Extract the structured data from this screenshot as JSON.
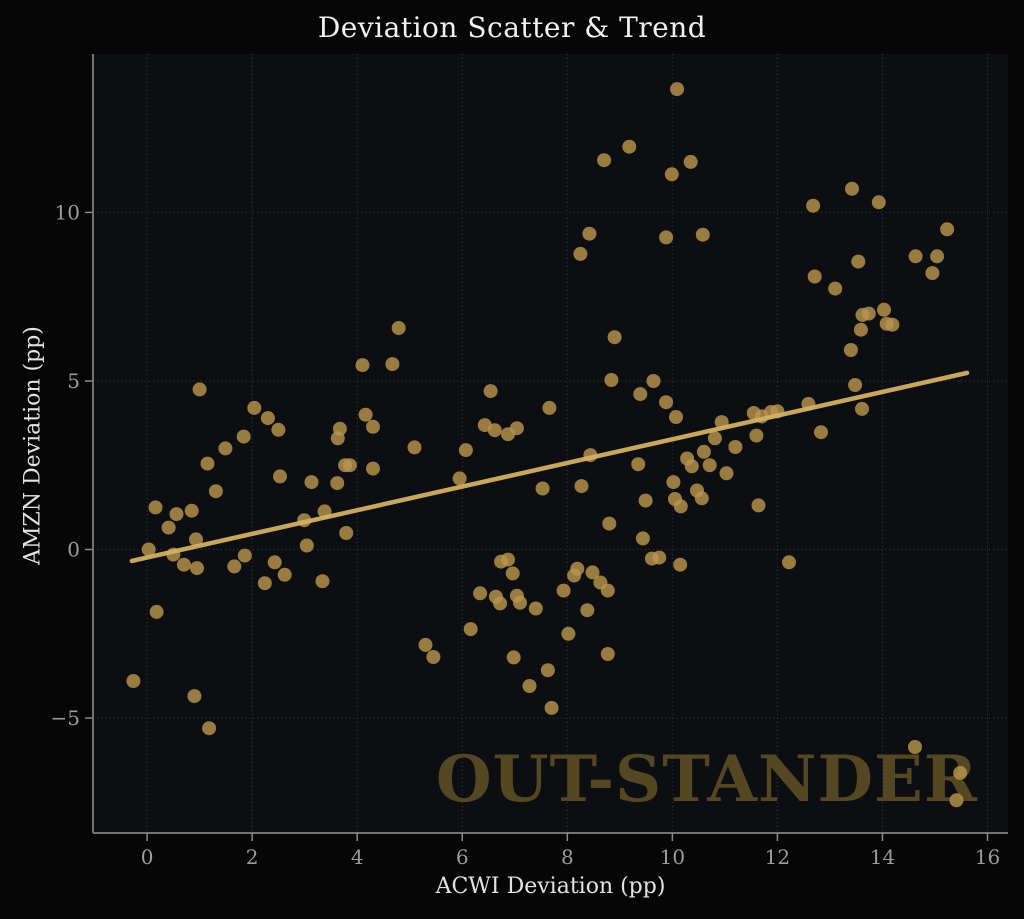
{
  "chart_data": {
    "type": "scatter",
    "title": "Deviation Scatter & Trend",
    "xlabel": "ACWI Deviation (pp)",
    "ylabel": "AMZN Deviation (pp)",
    "watermark": "OUT-STANDER",
    "xlim": [
      -1.03,
      16.39
    ],
    "ylim": [
      -8.41,
      14.7
    ],
    "grid": true,
    "legend": false,
    "xticks": {
      "values": [
        0,
        2,
        4,
        6,
        8,
        10,
        12,
        14,
        16
      ],
      "labels": [
        "0",
        "2",
        "4",
        "6",
        "8",
        "10",
        "12",
        "14",
        "16"
      ]
    },
    "yticks": {
      "values": [
        -5,
        0,
        5,
        10
      ],
      "labels": [
        "−5",
        "0",
        "5",
        "10"
      ]
    },
    "trend_line": {
      "x": [
        -0.29,
        15.61
      ],
      "y": [
        -0.34,
        5.24
      ]
    },
    "points": [
      [
        -0.26,
        -3.9
      ],
      [
        0.03,
        0.0
      ],
      [
        0.16,
        1.25
      ],
      [
        0.18,
        -1.85
      ],
      [
        0.41,
        0.65
      ],
      [
        0.5,
        -0.15
      ],
      [
        0.56,
        1.05
      ],
      [
        0.7,
        -0.45
      ],
      [
        0.85,
        1.15
      ],
      [
        0.9,
        -4.35
      ],
      [
        0.93,
        0.3
      ],
      [
        0.95,
        -0.55
      ],
      [
        1.0,
        4.75
      ],
      [
        1.15,
        2.55
      ],
      [
        1.18,
        -5.3
      ],
      [
        1.31,
        1.73
      ],
      [
        1.49,
        3.0
      ],
      [
        1.66,
        -0.5
      ],
      [
        1.84,
        3.35
      ],
      [
        1.86,
        -0.18
      ],
      [
        2.04,
        4.2
      ],
      [
        2.24,
        -1.0
      ],
      [
        2.3,
        3.9
      ],
      [
        2.43,
        -0.38
      ],
      [
        2.5,
        3.55
      ],
      [
        2.53,
        2.17
      ],
      [
        2.62,
        -0.75
      ],
      [
        2.99,
        0.87
      ],
      [
        3.04,
        0.12
      ],
      [
        3.13,
        2.0
      ],
      [
        3.34,
        -0.94
      ],
      [
        3.38,
        1.13
      ],
      [
        3.62,
        1.97
      ],
      [
        3.63,
        3.3
      ],
      [
        3.67,
        3.58
      ],
      [
        3.77,
        2.5
      ],
      [
        3.79,
        0.49
      ],
      [
        3.86,
        2.5
      ],
      [
        4.1,
        5.47
      ],
      [
        4.16,
        4.0
      ],
      [
        4.3,
        3.64
      ],
      [
        4.3,
        2.4
      ],
      [
        4.67,
        5.5
      ],
      [
        4.79,
        6.57
      ],
      [
        5.09,
        3.03
      ],
      [
        5.3,
        -2.83
      ],
      [
        5.45,
        -3.19
      ],
      [
        5.95,
        2.11
      ],
      [
        6.07,
        2.95
      ],
      [
        6.16,
        -2.36
      ],
      [
        6.34,
        -1.3
      ],
      [
        6.43,
        3.69
      ],
      [
        6.54,
        4.7
      ],
      [
        6.62,
        3.54
      ],
      [
        6.64,
        -1.4
      ],
      [
        6.72,
        -1.6
      ],
      [
        6.74,
        -0.36
      ],
      [
        6.87,
        3.42
      ],
      [
        6.87,
        -0.3
      ],
      [
        6.96,
        -0.71
      ],
      [
        6.98,
        -3.2
      ],
      [
        7.04,
        3.6
      ],
      [
        7.04,
        -1.37
      ],
      [
        7.1,
        -1.58
      ],
      [
        7.28,
        -4.05
      ],
      [
        7.4,
        -1.75
      ],
      [
        7.53,
        1.81
      ],
      [
        7.63,
        -3.58
      ],
      [
        7.66,
        4.2
      ],
      [
        7.7,
        -4.7
      ],
      [
        7.93,
        -1.22
      ],
      [
        8.02,
        -2.5
      ],
      [
        8.13,
        -0.77
      ],
      [
        8.19,
        -0.57
      ],
      [
        8.25,
        8.77
      ],
      [
        8.27,
        1.88
      ],
      [
        8.38,
        -1.8
      ],
      [
        8.42,
        9.37
      ],
      [
        8.44,
        2.8
      ],
      [
        8.48,
        -0.68
      ],
      [
        8.63,
        -0.98
      ],
      [
        8.7,
        11.55
      ],
      [
        8.77,
        -1.22
      ],
      [
        8.77,
        -3.1
      ],
      [
        8.8,
        0.77
      ],
      [
        8.84,
        5.03
      ],
      [
        8.9,
        6.3
      ],
      [
        9.18,
        11.95
      ],
      [
        9.35,
        2.53
      ],
      [
        9.39,
        4.61
      ],
      [
        9.44,
        0.33
      ],
      [
        9.49,
        1.45
      ],
      [
        9.61,
        -0.27
      ],
      [
        9.64,
        5.0
      ],
      [
        9.75,
        -0.24
      ],
      [
        9.88,
        9.26
      ],
      [
        9.88,
        4.37
      ],
      [
        9.99,
        11.13
      ],
      [
        10.02,
        2.0
      ],
      [
        10.05,
        1.5
      ],
      [
        10.07,
        3.93
      ],
      [
        10.09,
        13.66
      ],
      [
        10.15,
        -0.45
      ],
      [
        10.16,
        1.28
      ],
      [
        10.28,
        2.7
      ],
      [
        10.35,
        11.5
      ],
      [
        10.37,
        2.47
      ],
      [
        10.47,
        1.75
      ],
      [
        10.56,
        1.52
      ],
      [
        10.58,
        9.34
      ],
      [
        10.6,
        2.9
      ],
      [
        10.71,
        2.5
      ],
      [
        10.81,
        3.3
      ],
      [
        10.94,
        3.78
      ],
      [
        11.03,
        2.26
      ],
      [
        11.2,
        3.04
      ],
      [
        11.55,
        4.05
      ],
      [
        11.6,
        3.38
      ],
      [
        11.64,
        1.31
      ],
      [
        11.7,
        3.95
      ],
      [
        11.88,
        4.08
      ],
      [
        12.0,
        4.1
      ],
      [
        12.22,
        -0.38
      ],
      [
        12.59,
        4.32
      ],
      [
        12.68,
        10.2
      ],
      [
        12.71,
        8.1
      ],
      [
        12.83,
        3.48
      ],
      [
        13.1,
        7.74
      ],
      [
        13.4,
        5.92
      ],
      [
        13.42,
        10.7
      ],
      [
        13.48,
        4.88
      ],
      [
        13.54,
        8.54
      ],
      [
        13.59,
        6.52
      ],
      [
        13.61,
        4.17
      ],
      [
        13.62,
        6.96
      ],
      [
        13.74,
        7.0
      ],
      [
        13.93,
        10.3
      ],
      [
        14.03,
        7.11
      ],
      [
        14.08,
        6.7
      ],
      [
        14.19,
        6.67
      ],
      [
        14.62,
        -5.86
      ],
      [
        14.63,
        8.7
      ],
      [
        14.95,
        8.2
      ],
      [
        15.04,
        8.7
      ],
      [
        15.23,
        9.5
      ],
      [
        15.41,
        -7.44
      ],
      [
        15.48,
        -6.63
      ]
    ]
  },
  "style": {
    "colors": {
      "figure_background": "#060606",
      "plot_background": "#0d0e11",
      "point": "#b8954e",
      "trend": "#d2b065",
      "grid": "#3a3b41",
      "spine": "#737373",
      "tick": "#8a8a8a",
      "tick_label": "#9c9c9c",
      "title": "#f1f1f1",
      "axis_label": "#e3e3e3",
      "watermark": "#544724"
    }
  }
}
